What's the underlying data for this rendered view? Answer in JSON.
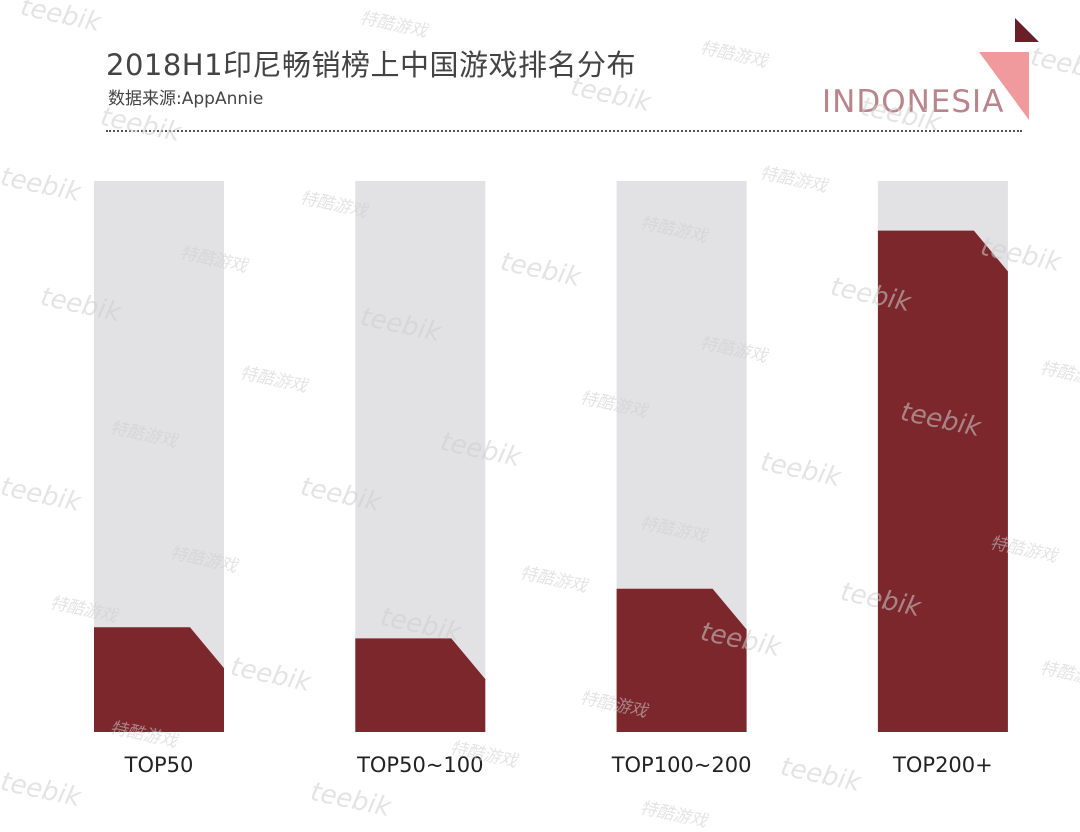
{
  "header": {
    "title": "2018H1印尼畅销榜上中国游戏排名分布",
    "subtitle": "数据来源:AppAnnie",
    "brand": "INDONESIA"
  },
  "colors": {
    "bar_fill": "#7b272c",
    "bar_track": "#e2e1e3",
    "accent_dark": "#6a1f26",
    "accent_pink": "#f09a9e"
  },
  "watermarks": [
    "teebik",
    "特酷游戏"
  ],
  "chart_data": {
    "type": "bar",
    "categories": [
      "TOP50",
      "TOP50~100",
      "TOP100~200",
      "TOP200+"
    ],
    "values": [
      19,
      17,
      26,
      91
    ],
    "ylim": [
      0,
      100
    ],
    "title": "",
    "xlabel": "",
    "ylabel": "",
    "grid": false,
    "legend": "none"
  }
}
